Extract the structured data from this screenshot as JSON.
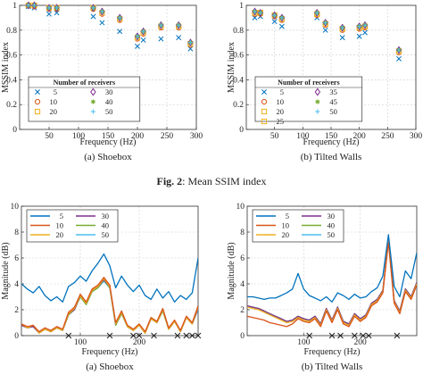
{
  "figure_caption": {
    "label": "Fig. 2",
    "text": ": Mean SSIM index"
  },
  "chart_data": [
    {
      "type": "scatter",
      "xlabel": "Frequency (Hz)",
      "ylabel": "MSSIM index",
      "caption": "(a) Shoebox",
      "xlim": [
        0,
        300
      ],
      "ylim": [
        0,
        1
      ],
      "xticks": [
        50,
        100,
        150,
        200,
        250,
        300
      ],
      "yticks": [
        0,
        0.2,
        0.4,
        0.6,
        0.8,
        1
      ],
      "ytick_labels": [
        "0",
        "0.2",
        "0.4",
        "0.6",
        "0.8",
        "1"
      ],
      "grid": true,
      "legend": {
        "title": "Number of receivers",
        "placement": "lower-left"
      },
      "x": [
        15,
        25,
        50,
        63,
        125,
        140,
        170,
        200,
        210,
        240,
        270,
        290
      ],
      "series": [
        {
          "name": "5",
          "marker": "x",
          "color": "#0072BD",
          "values": [
            0.99,
            0.98,
            0.93,
            0.94,
            0.91,
            0.86,
            0.79,
            0.67,
            0.72,
            0.73,
            0.74,
            0.65
          ]
        },
        {
          "name": "10",
          "marker": "circle",
          "color": "#D95319",
          "values": [
            1.0,
            0.99,
            0.97,
            0.97,
            0.97,
            0.93,
            0.88,
            0.73,
            0.77,
            0.82,
            0.82,
            0.68
          ]
        },
        {
          "name": "20",
          "marker": "square",
          "color": "#EDB120",
          "values": [
            1.0,
            1.0,
            0.98,
            0.98,
            0.98,
            0.94,
            0.89,
            0.74,
            0.78,
            0.83,
            0.83,
            0.69
          ]
        },
        {
          "name": "30",
          "marker": "diamond",
          "color": "#7E2F8E",
          "values": [
            1.0,
            1.0,
            0.98,
            0.98,
            0.98,
            0.95,
            0.9,
            0.75,
            0.79,
            0.84,
            0.84,
            0.7
          ]
        },
        {
          "name": "40",
          "marker": "star",
          "color": "#77AC30",
          "values": [
            1.0,
            1.0,
            0.98,
            0.98,
            0.98,
            0.95,
            0.9,
            0.75,
            0.79,
            0.84,
            0.84,
            0.7
          ]
        },
        {
          "name": "50",
          "marker": "plus",
          "color": "#4DBEEE",
          "values": [
            1.0,
            1.0,
            0.98,
            0.98,
            0.98,
            0.95,
            0.9,
            0.75,
            0.79,
            0.84,
            0.84,
            0.7
          ]
        }
      ]
    },
    {
      "type": "scatter",
      "xlabel": "Frequency (Hz)",
      "ylabel": "MSSIM index",
      "caption": "(b) Tilted Walls",
      "xlim": [
        0,
        300
      ],
      "ylim": [
        0,
        1
      ],
      "xticks": [
        50,
        100,
        150,
        200,
        250,
        300
      ],
      "yticks": [
        0,
        0.2,
        0.4,
        0.6,
        0.8,
        1
      ],
      "ytick_labels": [
        "0",
        "0.2",
        "0.4",
        "0.6",
        "0.8",
        "1"
      ],
      "grid": true,
      "legend": {
        "title": "Number of receivers",
        "placement": "lower-left"
      },
      "x": [
        15,
        25,
        50,
        63,
        125,
        140,
        170,
        200,
        210,
        270
      ],
      "series": [
        {
          "name": "5",
          "marker": "x",
          "color": "#0072BD",
          "values": [
            0.9,
            0.91,
            0.87,
            0.83,
            0.9,
            0.8,
            0.74,
            0.75,
            0.78,
            0.57
          ]
        },
        {
          "name": "10",
          "marker": "circle",
          "color": "#D95319",
          "values": [
            0.93,
            0.93,
            0.91,
            0.88,
            0.92,
            0.84,
            0.8,
            0.81,
            0.82,
            0.62
          ]
        },
        {
          "name": "20",
          "marker": "square",
          "color": "#EDB120",
          "values": [
            0.94,
            0.94,
            0.92,
            0.89,
            0.93,
            0.85,
            0.81,
            0.82,
            0.83,
            0.63
          ]
        },
        {
          "name": "25",
          "marker": "square",
          "color": "#EDB120",
          "values": [
            0.94,
            0.94,
            0.92,
            0.89,
            0.93,
            0.85,
            0.81,
            0.82,
            0.83,
            0.63
          ]
        },
        {
          "name": "35",
          "marker": "diamond",
          "color": "#7E2F8E",
          "values": [
            0.95,
            0.94,
            0.92,
            0.9,
            0.94,
            0.86,
            0.82,
            0.83,
            0.84,
            0.64
          ]
        },
        {
          "name": "45",
          "marker": "star",
          "color": "#77AC30",
          "values": [
            0.95,
            0.94,
            0.92,
            0.9,
            0.94,
            0.86,
            0.82,
            0.83,
            0.84,
            0.64
          ]
        },
        {
          "name": "50",
          "marker": "plus",
          "color": "#4DBEEE",
          "values": [
            0.95,
            0.94,
            0.92,
            0.9,
            0.94,
            0.86,
            0.82,
            0.83,
            0.84,
            0.64
          ]
        }
      ]
    },
    {
      "type": "line",
      "xlabel": "Frequency (Hz)",
      "ylabel": "Magnitude (dB)",
      "caption": "(a) Shoebox",
      "xlim": [
        0,
        300
      ],
      "ylim": [
        0,
        10
      ],
      "xticks": [
        100,
        200
      ],
      "yticks": [
        0,
        2,
        4,
        6,
        8,
        10
      ],
      "ytick_labels": [
        "0",
        "2",
        "4",
        "6",
        "8",
        "10"
      ],
      "grid": true,
      "legend": {
        "placement": "top-left",
        "columns": 2
      },
      "x": [
        0,
        10,
        20,
        30,
        40,
        50,
        60,
        70,
        80,
        90,
        100,
        110,
        120,
        130,
        140,
        150,
        160,
        170,
        180,
        190,
        200,
        210,
        220,
        230,
        240,
        250,
        260,
        270,
        280,
        290,
        300
      ],
      "series": [
        {
          "name": "5",
          "color": "#0072BD",
          "values": [
            4.0,
            3.6,
            3.3,
            3.8,
            3.1,
            2.7,
            3.0,
            2.6,
            3.8,
            4.1,
            4.6,
            4.2,
            5.0,
            5.6,
            6.3,
            5.4,
            3.7,
            4.6,
            3.9,
            3.4,
            3.9,
            3.1,
            2.8,
            3.6,
            2.9,
            3.4,
            2.6,
            3.1,
            2.8,
            3.3,
            6.0
          ]
        },
        {
          "name": "10",
          "color": "#D95319",
          "values": [
            0.9,
            0.7,
            0.8,
            0.3,
            0.6,
            0.4,
            0.7,
            0.5,
            1.8,
            2.2,
            3.2,
            2.6,
            3.6,
            3.9,
            4.5,
            3.9,
            1.0,
            1.9,
            0.8,
            0.5,
            0.9,
            0.3,
            1.4,
            1.1,
            2.1,
            0.6,
            1.2,
            0.4,
            1.5,
            1.0,
            2.3
          ]
        },
        {
          "name": "20",
          "color": "#EDB120",
          "values": [
            0.9,
            0.6,
            0.8,
            0.2,
            0.5,
            0.3,
            0.6,
            0.4,
            1.7,
            2.1,
            3.1,
            2.5,
            3.5,
            3.8,
            4.4,
            3.8,
            0.9,
            1.8,
            0.7,
            0.4,
            0.8,
            0.2,
            1.3,
            1.0,
            2.0,
            0.5,
            1.1,
            0.3,
            1.4,
            0.9,
            2.2
          ]
        },
        {
          "name": "30",
          "color": "#7E2F8E",
          "values": [
            0.8,
            0.6,
            0.7,
            0.2,
            0.5,
            0.3,
            0.6,
            0.4,
            1.7,
            2.0,
            3.1,
            2.5,
            3.5,
            3.8,
            4.3,
            3.8,
            0.9,
            1.8,
            0.7,
            0.4,
            0.8,
            0.2,
            1.3,
            1.0,
            2.0,
            0.5,
            1.1,
            0.3,
            1.4,
            0.9,
            2.1
          ]
        },
        {
          "name": "40",
          "color": "#77AC30",
          "values": [
            0.8,
            0.6,
            0.7,
            0.2,
            0.5,
            0.3,
            0.6,
            0.4,
            1.6,
            2.0,
            3.0,
            2.4,
            3.4,
            3.7,
            4.3,
            3.7,
            0.8,
            1.7,
            0.7,
            0.4,
            0.8,
            0.2,
            1.3,
            1.0,
            1.9,
            0.5,
            1.1,
            0.3,
            1.4,
            0.9,
            2.1
          ]
        },
        {
          "name": "50",
          "color": "#4DBEEE",
          "values": [
            0.8,
            0.6,
            0.7,
            0.2,
            0.5,
            0.3,
            0.6,
            0.4,
            1.6,
            2.0,
            3.0,
            2.4,
            3.4,
            3.7,
            4.2,
            3.7,
            0.8,
            1.7,
            0.7,
            0.4,
            0.8,
            0.2,
            1.3,
            1.0,
            1.9,
            0.5,
            1.1,
            0.3,
            1.4,
            0.9,
            2.0
          ]
        }
      ],
      "x_markers": [
        80,
        150,
        190,
        200,
        225,
        265,
        280,
        290,
        300
      ]
    },
    {
      "type": "line",
      "xlabel": "Frequency (Hz)",
      "ylabel": "Magnitude (dB)",
      "caption": "(b) Tilted Walls",
      "xlim": [
        0,
        300
      ],
      "ylim": [
        0,
        10
      ],
      "xticks": [
        100,
        200
      ],
      "yticks": [
        0,
        2,
        4,
        6,
        8,
        10
      ],
      "ytick_labels": [
        "0",
        "2",
        "4",
        "6",
        "8",
        "10"
      ],
      "grid": true,
      "legend": {
        "placement": "top-left",
        "columns": 2
      },
      "x": [
        0,
        10,
        20,
        30,
        40,
        50,
        60,
        70,
        80,
        90,
        100,
        110,
        120,
        130,
        140,
        150,
        160,
        170,
        180,
        190,
        200,
        210,
        220,
        230,
        240,
        250,
        260,
        270,
        280,
        290,
        300
      ],
      "series": [
        {
          "name": "5",
          "color": "#0072BD",
          "values": [
            3.0,
            3.0,
            2.9,
            2.8,
            2.9,
            2.9,
            3.1,
            3.3,
            3.6,
            4.8,
            3.6,
            3.1,
            2.9,
            2.7,
            3.0,
            2.6,
            3.3,
            3.1,
            2.8,
            3.2,
            2.9,
            3.0,
            3.4,
            3.7,
            4.6,
            7.8,
            3.8,
            3.0,
            5.0,
            4.4,
            6.4
          ]
        },
        {
          "name": "10",
          "color": "#D95319",
          "values": [
            1.5,
            1.4,
            1.3,
            1.2,
            1.0,
            0.9,
            0.8,
            0.7,
            0.9,
            1.3,
            1.1,
            1.0,
            1.3,
            0.7,
            1.9,
            1.0,
            2.0,
            0.9,
            0.7,
            1.5,
            1.1,
            1.4,
            2.3,
            2.6,
            3.3,
            7.2,
            2.5,
            1.7,
            3.4,
            2.8,
            3.9
          ]
        },
        {
          "name": "20",
          "color": "#EDB120",
          "values": [
            2.2,
            2.1,
            2.0,
            1.8,
            1.6,
            1.4,
            1.2,
            1.0,
            1.1,
            1.4,
            1.2,
            1.1,
            1.4,
            0.8,
            2.0,
            1.1,
            2.1,
            1.0,
            0.8,
            1.6,
            1.2,
            1.5,
            2.4,
            2.7,
            3.4,
            7.3,
            2.6,
            1.8,
            3.5,
            2.9,
            4.0
          ]
        },
        {
          "name": "30",
          "color": "#7E2F8E",
          "values": [
            2.3,
            2.2,
            2.1,
            1.9,
            1.7,
            1.5,
            1.3,
            1.1,
            1.2,
            1.5,
            1.3,
            1.2,
            1.5,
            0.9,
            2.1,
            1.2,
            2.2,
            1.1,
            0.9,
            1.7,
            1.3,
            1.6,
            2.5,
            2.8,
            3.5,
            7.4,
            2.7,
            1.9,
            3.6,
            3.0,
            4.1
          ]
        },
        {
          "name": "40",
          "color": "#77AC30",
          "values": [
            2.3,
            2.2,
            2.1,
            1.9,
            1.7,
            1.5,
            1.3,
            1.1,
            1.2,
            1.5,
            1.3,
            1.2,
            1.5,
            0.9,
            2.1,
            1.2,
            2.2,
            1.1,
            0.9,
            1.7,
            1.3,
            1.6,
            2.5,
            2.8,
            3.5,
            7.4,
            2.7,
            1.9,
            3.6,
            3.0,
            4.1
          ]
        },
        {
          "name": "50",
          "color": "#4DBEEE",
          "values": [
            2.3,
            2.2,
            2.1,
            1.9,
            1.7,
            1.5,
            1.3,
            1.1,
            1.2,
            1.5,
            1.3,
            1.2,
            1.5,
            0.9,
            2.1,
            1.2,
            2.2,
            1.1,
            0.9,
            1.7,
            1.3,
            1.6,
            2.5,
            2.8,
            3.5,
            7.4,
            2.7,
            1.9,
            3.6,
            3.0,
            4.1
          ]
        }
      ],
      "x_markers": [
        110,
        150,
        165,
        190,
        205,
        215,
        265
      ]
    }
  ]
}
